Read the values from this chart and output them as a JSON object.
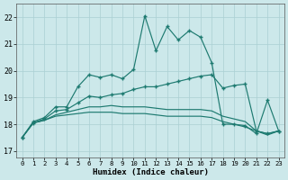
{
  "x": [
    0,
    1,
    2,
    3,
    4,
    5,
    6,
    7,
    8,
    9,
    10,
    11,
    12,
    13,
    14,
    15,
    16,
    17,
    18,
    19,
    20,
    21,
    22,
    23
  ],
  "line_top": [
    17.5,
    18.1,
    18.25,
    18.65,
    18.65,
    19.4,
    19.85,
    19.75,
    19.85,
    19.7,
    20.05,
    22.05,
    20.75,
    21.65,
    21.15,
    21.5,
    21.25,
    20.3,
    18.0,
    18.0,
    17.95,
    17.65,
    18.9,
    17.75
  ],
  "line_mid_up": [
    17.5,
    18.05,
    18.2,
    18.5,
    18.55,
    18.8,
    19.05,
    19.0,
    19.1,
    19.15,
    19.3,
    19.4,
    19.4,
    19.5,
    19.6,
    19.7,
    19.8,
    19.85,
    19.35,
    19.45,
    19.5,
    17.75,
    17.65,
    17.75
  ],
  "line_mid": [
    17.5,
    18.05,
    18.15,
    18.35,
    18.45,
    18.55,
    18.65,
    18.65,
    18.7,
    18.65,
    18.65,
    18.65,
    18.6,
    18.55,
    18.55,
    18.55,
    18.55,
    18.5,
    18.3,
    18.2,
    18.1,
    17.75,
    17.65,
    17.75
  ],
  "line_low": [
    17.5,
    18.05,
    18.15,
    18.3,
    18.35,
    18.4,
    18.45,
    18.45,
    18.45,
    18.4,
    18.4,
    18.4,
    18.35,
    18.3,
    18.3,
    18.3,
    18.3,
    18.25,
    18.1,
    18.0,
    17.9,
    17.75,
    17.6,
    17.75
  ],
  "color": "#1d7a70",
  "bg_color": "#cce8ea",
  "grid_color": "#aacfd3",
  "ylabel_ticks": [
    17,
    18,
    19,
    20,
    21,
    22
  ],
  "xlabel": "Humidex (Indice chaleur)",
  "xlim": [
    -0.5,
    23.5
  ],
  "ylim": [
    16.75,
    22.5
  ]
}
